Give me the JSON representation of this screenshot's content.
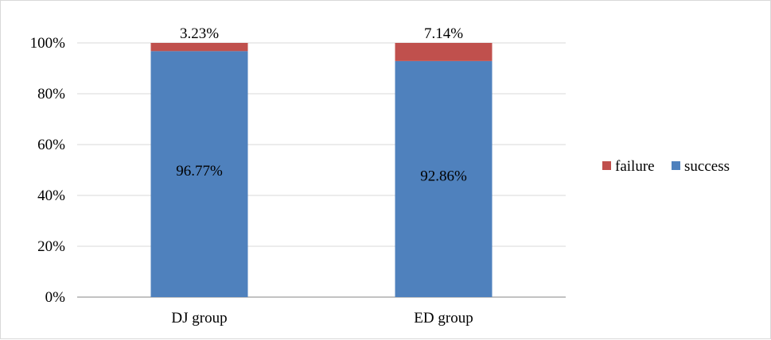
{
  "chart_data": {
    "type": "bar",
    "stacked": true,
    "categories": [
      "DJ group",
      "ED group"
    ],
    "series": [
      {
        "name": "success",
        "values": [
          96.77,
          92.86
        ],
        "labels": [
          "96.77%",
          "92.86%"
        ],
        "color": "#4f81bd"
      },
      {
        "name": "failure",
        "values": [
          3.23,
          7.14
        ],
        "labels": [
          "3.23%",
          "7.14%"
        ],
        "color": "#c0504d"
      }
    ],
    "y_ticks": [
      "0%",
      "20%",
      "40%",
      "60%",
      "80%",
      "100%"
    ],
    "ylim": [
      0,
      100
    ],
    "grid": true,
    "legend_position": "right",
    "legend_order": [
      "failure",
      "success"
    ],
    "title": "",
    "xlabel": "",
    "ylabel": ""
  }
}
